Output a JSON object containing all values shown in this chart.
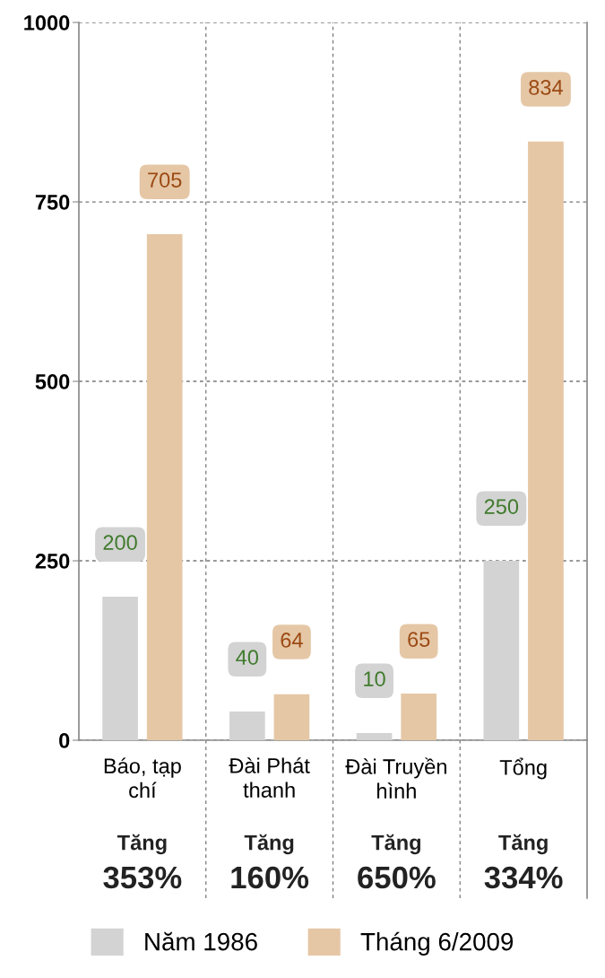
{
  "chart_data": {
    "type": "bar",
    "categories": [
      "Báo, tạp\nchí",
      "Đài Phát\nthanh",
      "Đài Truyền\nhình",
      "Tổng"
    ],
    "series": [
      {
        "name": "Năm 1986",
        "color": "#d3d3d3",
        "values": [
          200,
          40,
          10,
          250
        ]
      },
      {
        "name": "Tháng 6/2009",
        "color": "#e5c7a6",
        "values": [
          705,
          64,
          65,
          834
        ]
      }
    ],
    "ylim": [
      0,
      1000
    ],
    "yticks": [
      0,
      250,
      500,
      750,
      1000
    ],
    "grid": true,
    "data_labels": true,
    "legend": "bottom",
    "annotations": [
      "Tăng\n353%",
      "Tăng\n160%",
      "Tăng\n650%",
      "Tăng\n334%"
    ]
  }
}
